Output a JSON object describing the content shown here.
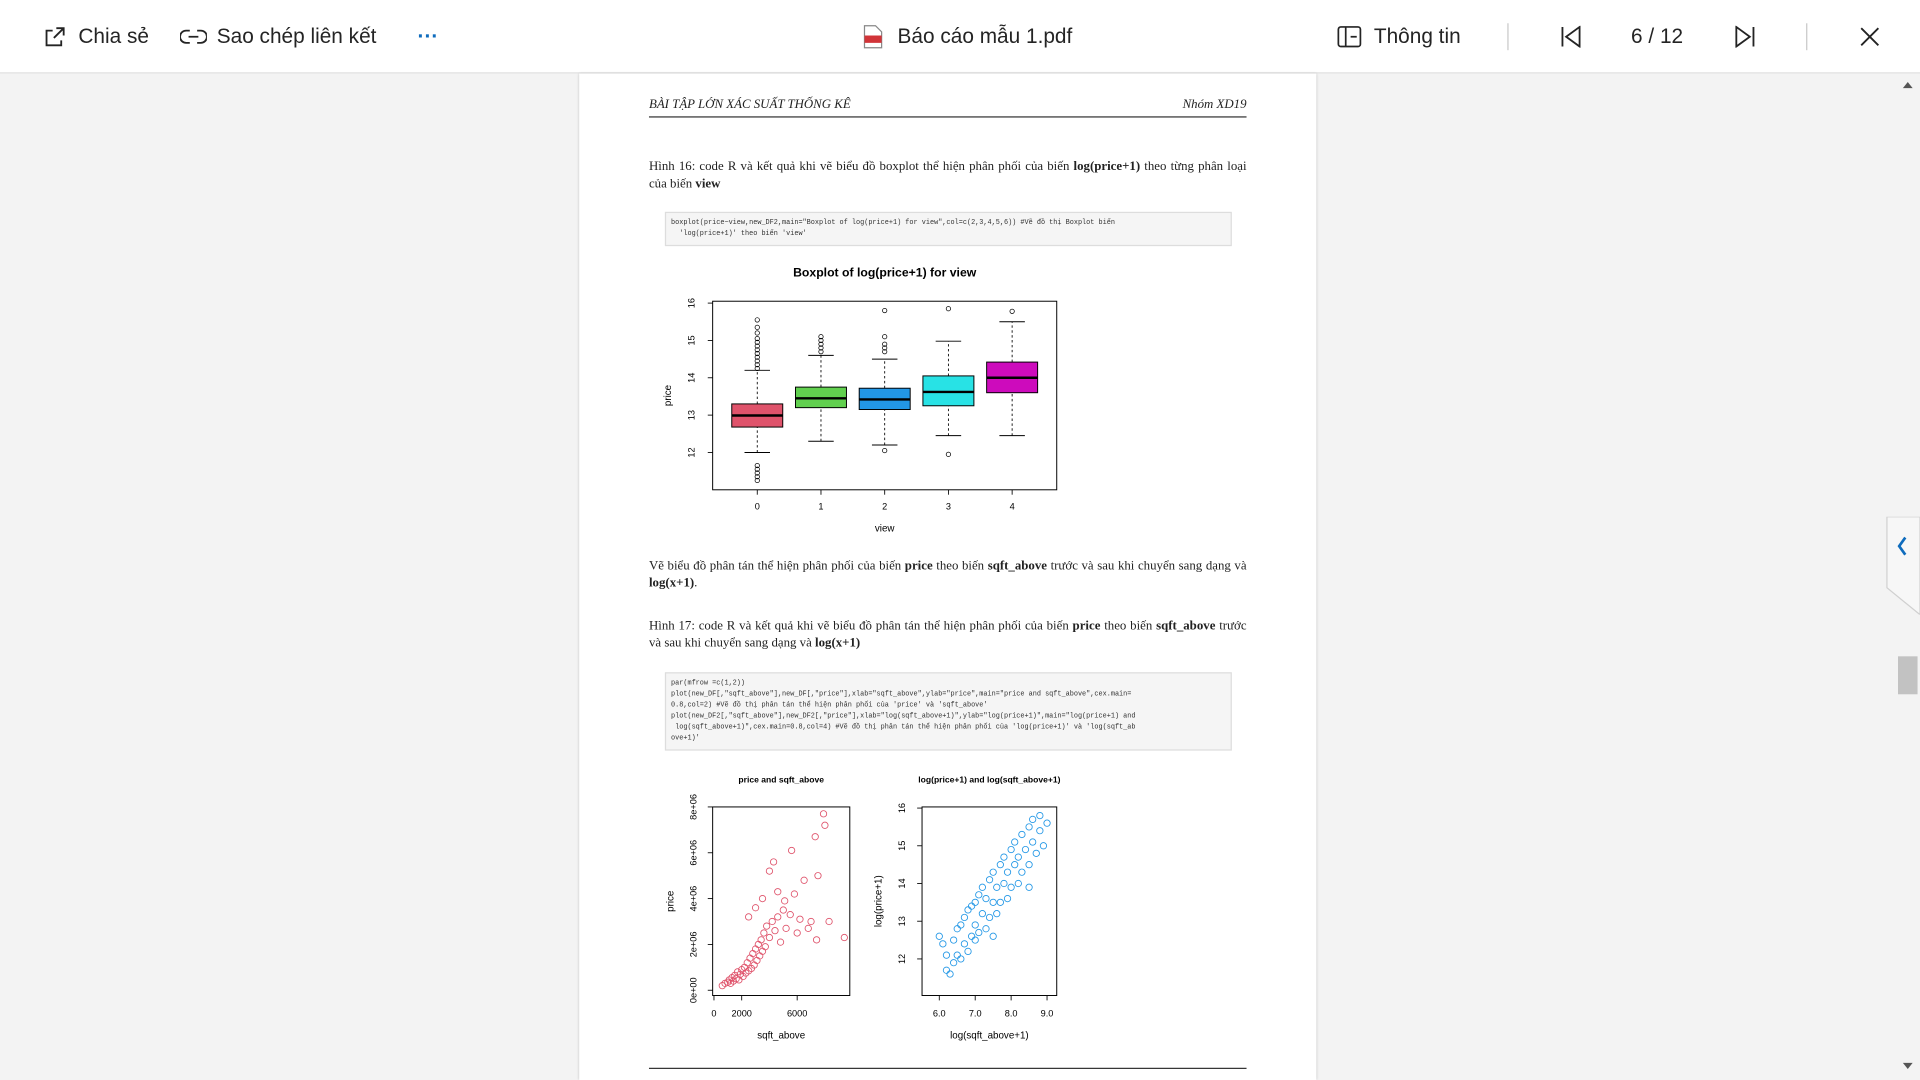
{
  "toolbar": {
    "share": "Chia sẻ",
    "copy_link": "Sao chép liên kết",
    "more": "···",
    "file_name": "Báo cáo mẫu 1.pdf",
    "info": "Thông tin",
    "page_indicator": "6 / 12"
  },
  "document": {
    "header_left": "BÀI TẬP LỚN XÁC SUẤT THỐNG KÊ",
    "header_right": "Nhóm XD19",
    "paragraphs": [
      {
        "runs": [
          {
            "text": "Hình 16: code R và kết quả khi vẽ biểu đồ boxplot thể hiện phân phối của biến ",
            "bold": false
          },
          {
            "text": "log(price+1)",
            "bold": true
          },
          {
            "text": " theo từng phân loại của biến ",
            "bold": false
          },
          {
            "text": "view",
            "bold": true
          }
        ]
      },
      {
        "runs": [
          {
            "text": "Vẽ biểu đồ phân tán thể hiện phân phối của biến ",
            "bold": false
          },
          {
            "text": "price",
            "bold": true
          },
          {
            "text": " theo biến ",
            "bold": false
          },
          {
            "text": "sqft_above",
            "bold": true
          },
          {
            "text": " trước và sau khi chuyển sang dạng và ",
            "bold": false
          },
          {
            "text": "log(x+1)",
            "bold": true
          },
          {
            "text": ".",
            "bold": false
          }
        ]
      },
      {
        "runs": [
          {
            "text": "Hình 17: code R và kết quả khi vẽ biểu đồ phân tán thể hiện phân phối của biến ",
            "bold": false
          },
          {
            "text": "price",
            "bold": true
          },
          {
            "text": " theo biến ",
            "bold": false
          },
          {
            "text": "sqft_above",
            "bold": true
          },
          {
            "text": " trước và sau khi chuyển sang dạng và ",
            "bold": false
          },
          {
            "text": "log(x+1)",
            "bold": true
          }
        ]
      }
    ],
    "code_blocks": [
      {
        "lines": [
          "boxplot(price~view,new_DF2,main=\"Boxplot of log(price+1) for view\",col=c(2,3,4,5,6)) #Vẽ đồ thị Boxplot biến",
          "  'log(price+1)' theo biến 'view'"
        ]
      },
      {
        "lines": [
          "par(mfrow =c(1,2))",
          "plot(new_DF[,\"sqft_above\"],new_DF[,\"price\"],xlab=\"sqft_above\",ylab=\"price\",main=\"price and sqft_above\",cex.main=",
          "0.8,col=2) #Vẽ đồ thị phân tán thể hiện phân phối của 'price' và 'sqft_above'",
          "plot(new_DF2[,\"sqft_above\"],new_DF2[,\"price\"],xlab=\"log(sqft_above+1)\",ylab=\"log(price+1)\",main=\"log(price+1) and",
          " log(sqft_above+1)\",cex.main=0.8,col=4) #Vẽ đồ thị phân tán thể hiện phân phối của 'log(price+1)' và 'log(sqft_ab",
          "ove+1)'"
        ]
      }
    ]
  },
  "chart_data": [
    {
      "type": "boxplot",
      "title": "Boxplot of log(price+1) for view",
      "x_label": "view",
      "y_label": "price",
      "categories": [
        "0",
        "1",
        "2",
        "3",
        "4"
      ],
      "boxes": [
        {
          "color": "#DF536B",
          "whisker_low": 12.0,
          "q1": 12.68,
          "median": 12.99,
          "q3": 13.3,
          "whisker_high": 14.2,
          "outliers": [
            14.25,
            14.35,
            14.45,
            14.55,
            14.65,
            14.75,
            14.85,
            14.95,
            15.05,
            15.2,
            15.35,
            15.55,
            11.25,
            11.35,
            11.45,
            11.55,
            11.65
          ]
        },
        {
          "color": "#61D04F",
          "whisker_low": 12.3,
          "q1": 13.2,
          "median": 13.45,
          "q3": 13.75,
          "whisker_high": 14.6,
          "outliers": [
            14.7,
            14.8,
            14.9,
            15.0,
            15.1
          ]
        },
        {
          "color": "#2297E6",
          "whisker_low": 12.2,
          "q1": 13.15,
          "median": 13.42,
          "q3": 13.72,
          "whisker_high": 14.5,
          "outliers": [
            12.05,
            14.7,
            14.8,
            14.9,
            15.1,
            15.8
          ]
        },
        {
          "color": "#28E2E5",
          "whisker_low": 12.45,
          "q1": 13.25,
          "median": 13.62,
          "q3": 14.05,
          "whisker_high": 14.98,
          "outliers": [
            11.95,
            15.85
          ]
        },
        {
          "color": "#CD0BBC",
          "whisker_low": 12.45,
          "q1": 13.6,
          "median": 14.0,
          "q3": 14.42,
          "whisker_high": 15.5,
          "outliers": [
            15.78
          ]
        }
      ],
      "ylim": [
        11.0,
        16.05
      ],
      "yticks": [
        12,
        13,
        14,
        15,
        16
      ]
    },
    {
      "type": "scatter",
      "title": "price and sqft_above",
      "x_label": "sqft_above",
      "y_label": "price",
      "color": "#DF536B",
      "x": [
        600,
        800,
        1000,
        1100,
        1200,
        1300,
        1400,
        1500,
        1600,
        1700,
        1800,
        1900,
        2000,
        2100,
        2200,
        2300,
        2400,
        2500,
        2600,
        2700,
        2800,
        2900,
        3000,
        3100,
        3200,
        3300,
        3400,
        3500,
        3600,
        3700,
        3800,
        4000,
        4200,
        4400,
        4600,
        4800,
        5000,
        5200,
        5500,
        5800,
        6000,
        6200,
        6500,
        6800,
        7000,
        7400,
        3500,
        4000,
        4300,
        4600,
        5100,
        5600,
        7500,
        7300,
        7900,
        8000,
        8300,
        9400,
        2500,
        3000
      ],
      "y": [
        200000,
        300000,
        350000,
        450000,
        300000,
        550000,
        400000,
        650000,
        500000,
        800000,
        450000,
        700000,
        900000,
        600000,
        1000000,
        750000,
        1200000,
        850000,
        1400000,
        950000,
        1600000,
        1100000,
        1800000,
        1300000,
        2000000,
        1500000,
        2200000,
        1700000,
        2500000,
        1900000,
        2800000,
        2300000,
        3000000,
        2600000,
        3200000,
        2100000,
        3500000,
        2700000,
        3300000,
        4200000,
        2500000,
        3100000,
        4800000,
        2700000,
        3000000,
        2200000,
        4000000,
        5200000,
        5600000,
        4300000,
        3900000,
        6100000,
        5000000,
        6700000,
        7700000,
        7200000,
        3000000,
        2300000,
        3200000,
        3600000
      ],
      "xlim": [
        -95,
        9795
      ],
      "ylim": [
        -230000,
        8000000
      ],
      "xticks": [
        0,
        2000,
        6000
      ],
      "yticks": [
        {
          "value": 0,
          "label": "0e+00"
        },
        {
          "value": 2000000,
          "label": "2e+06"
        },
        {
          "value": 4000000,
          "label": "4e+06"
        },
        {
          "value": 6000000,
          "label": "6e+06"
        },
        {
          "value": 8000000,
          "label": "8e+06"
        }
      ]
    },
    {
      "type": "scatter",
      "title": "log(price+1) and log(sqft_above+1)",
      "x_label": "log(sqft_above+1)",
      "y_label": "log(price+1)",
      "color": "#2297E6",
      "x": [
        6.2,
        6.2,
        6.3,
        6.4,
        6.4,
        6.5,
        6.5,
        6.6,
        6.6,
        6.7,
        6.7,
        6.8,
        6.8,
        6.9,
        6.9,
        7.0,
        7.0,
        7.0,
        7.1,
        7.1,
        7.2,
        7.2,
        7.3,
        7.3,
        7.4,
        7.4,
        7.5,
        7.5,
        7.6,
        7.6,
        7.7,
        7.7,
        7.8,
        7.8,
        7.9,
        7.9,
        8.0,
        8.0,
        8.1,
        8.1,
        8.2,
        8.2,
        8.3,
        8.3,
        8.4,
        8.5,
        8.5,
        8.6,
        8.6,
        8.7,
        8.8,
        8.8,
        8.9,
        9.0,
        6.1,
        6.0,
        7.5,
        8.5
      ],
      "y": [
        11.7,
        12.1,
        11.6,
        12.5,
        11.9,
        12.8,
        12.1,
        12.0,
        12.9,
        12.4,
        13.1,
        12.2,
        13.3,
        12.6,
        13.4,
        12.5,
        13.5,
        12.9,
        13.7,
        12.7,
        13.2,
        13.9,
        12.8,
        13.6,
        14.1,
        13.1,
        13.5,
        14.3,
        13.2,
        13.9,
        14.5,
        13.5,
        14.0,
        14.7,
        13.6,
        14.3,
        14.9,
        13.9,
        14.5,
        15.1,
        14.0,
        14.7,
        15.3,
        14.3,
        14.9,
        15.5,
        14.5,
        15.1,
        15.7,
        14.8,
        15.4,
        15.8,
        15.0,
        15.6,
        12.4,
        12.6,
        12.6,
        13.9
      ],
      "xlim": [
        5.52,
        9.27
      ],
      "ylim": [
        11.03,
        16.03
      ],
      "xticks": [
        {
          "value": 6,
          "label": "6.0"
        },
        {
          "value": 7,
          "label": "7.0"
        },
        {
          "value": 8,
          "label": "8.0"
        },
        {
          "value": 9,
          "label": "9.0"
        }
      ],
      "yticks": [
        12,
        13,
        14,
        15,
        16
      ]
    }
  ]
}
